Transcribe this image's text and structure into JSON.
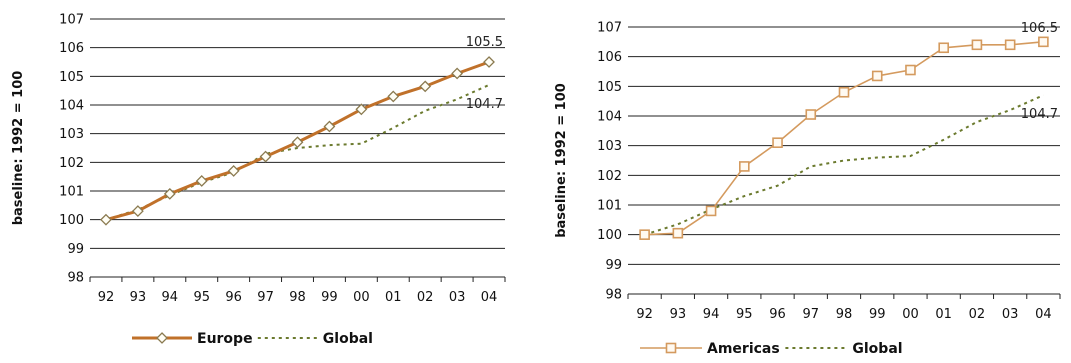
{
  "chart_data": [
    {
      "type": "line",
      "categories": [
        "92",
        "93",
        "94",
        "95",
        "96",
        "97",
        "98",
        "99",
        "00",
        "01",
        "02",
        "03",
        "04"
      ],
      "ylabel": "baseline: 1992 = 100",
      "ylim": [
        98,
        107
      ],
      "yticks": [
        "98",
        "99",
        "100",
        "101",
        "102",
        "103",
        "104",
        "105",
        "106",
        "107"
      ],
      "grid": true,
      "legend_position": "bottom",
      "series": [
        {
          "name": "Europe",
          "style": "solid-diamond",
          "color": "#c0712a",
          "values": [
            100.0,
            100.3,
            100.9,
            101.35,
            101.7,
            102.2,
            102.7,
            103.25,
            103.85,
            104.3,
            104.65,
            105.1,
            105.5
          ]
        },
        {
          "name": "Global",
          "style": "dotted",
          "color": "#6b7a2e",
          "values": [
            100.0,
            100.35,
            100.85,
            101.3,
            101.65,
            102.3,
            102.5,
            102.6,
            102.65,
            103.2,
            103.8,
            104.2,
            104.7
          ]
        }
      ],
      "annotations": [
        {
          "series": "Europe",
          "text": "105.5"
        },
        {
          "series": "Global",
          "text": "104.7"
        }
      ]
    },
    {
      "type": "line",
      "categories": [
        "92",
        "93",
        "94",
        "95",
        "96",
        "97",
        "98",
        "99",
        "00",
        "01",
        "02",
        "03",
        "04"
      ],
      "ylabel": "baseline: 1992 = 100",
      "ylim": [
        98,
        107
      ],
      "yticks": [
        "98",
        "99",
        "100",
        "101",
        "102",
        "103",
        "104",
        "105",
        "106",
        "107"
      ],
      "grid": true,
      "legend_position": "bottom",
      "series": [
        {
          "name": "Americas",
          "style": "solid-square",
          "color": "#d49a5e",
          "values": [
            100.0,
            100.05,
            100.8,
            102.3,
            103.1,
            104.05,
            104.8,
            105.35,
            105.55,
            106.3,
            106.4,
            106.4,
            106.5
          ]
        },
        {
          "name": "Global",
          "style": "dotted",
          "color": "#6b7a2e",
          "values": [
            100.0,
            100.35,
            100.85,
            101.3,
            101.65,
            102.3,
            102.5,
            102.6,
            102.65,
            103.2,
            103.8,
            104.2,
            104.7
          ]
        }
      ],
      "annotations": [
        {
          "series": "Americas",
          "text": "106.5"
        },
        {
          "series": "Global",
          "text": "104.7"
        }
      ]
    }
  ]
}
